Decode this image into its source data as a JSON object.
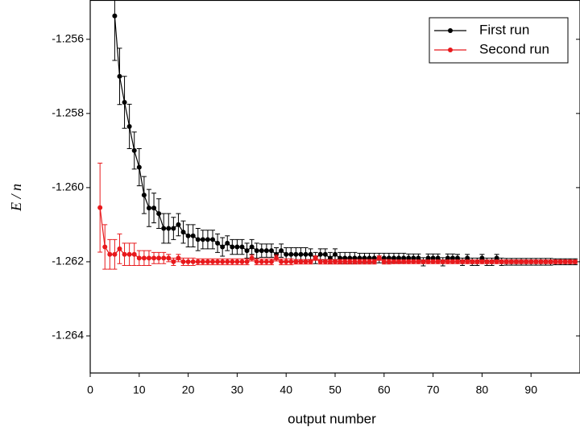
{
  "chart_data": {
    "type": "line",
    "y_label": "E / n",
    "x_label": "output number",
    "xlim": [
      0,
      100
    ],
    "ylim": [
      -1.265,
      -1.25494
    ],
    "xticks": [
      0,
      10,
      20,
      30,
      40,
      50,
      60,
      70,
      80,
      90
    ],
    "yticks": [
      -1.256,
      -1.258,
      {
        "value": -1.26,
        "label": "-1.260"
      },
      -1.262,
      -1.264
    ],
    "legend": "top-right",
    "series": [
      {
        "name": "First run",
        "color": "#000000",
        "x": [
          5,
          6,
          7,
          8,
          9,
          10,
          11,
          12,
          13,
          14,
          15,
          16,
          17,
          18,
          19,
          20,
          21,
          22,
          23,
          24,
          25,
          26,
          27,
          28,
          29,
          30,
          31,
          32,
          33,
          34,
          35,
          36,
          37,
          38,
          39,
          40,
          41,
          42,
          43,
          44,
          45,
          46,
          47,
          48,
          49,
          50,
          51,
          52,
          53,
          54,
          55,
          56,
          57,
          58,
          59,
          60,
          61,
          62,
          63,
          64,
          65,
          66,
          67,
          68,
          69,
          70,
          71,
          72,
          73,
          74,
          75,
          76,
          77,
          78,
          79,
          80,
          81,
          82,
          83,
          84,
          85,
          86,
          87,
          88,
          89,
          90,
          91,
          92,
          93,
          94,
          95,
          96,
          97,
          98,
          99
        ],
        "values": [
          -1.25537,
          -1.257,
          -1.2577,
          -1.25835,
          -1.259,
          -1.25945,
          -1.2602,
          -1.26055,
          -1.26055,
          -1.2607,
          -1.2611,
          -1.2611,
          -1.2611,
          -1.261,
          -1.2612,
          -1.2613,
          -1.2613,
          -1.2614,
          -1.2614,
          -1.2614,
          -1.2614,
          -1.2615,
          -1.2616,
          -1.2615,
          -1.2616,
          -1.2616,
          -1.2616,
          -1.2617,
          -1.2616,
          -1.2617,
          -1.2617,
          -1.2617,
          -1.2617,
          -1.2618,
          -1.2617,
          -1.2618,
          -1.2618,
          -1.2618,
          -1.2618,
          -1.2618,
          -1.2618,
          -1.2619,
          -1.2618,
          -1.2618,
          -1.2619,
          -1.2618,
          -1.2619,
          -1.2619,
          -1.2619,
          -1.2619,
          -1.2619,
          -1.2619,
          -1.2619,
          -1.2619,
          -1.2619,
          -1.2619,
          -1.2619,
          -1.2619,
          -1.2619,
          -1.2619,
          -1.2619,
          -1.2619,
          -1.2619,
          -1.262,
          -1.2619,
          -1.2619,
          -1.2619,
          -1.262,
          -1.2619,
          -1.2619,
          -1.2619,
          -1.262,
          -1.2619,
          -1.262,
          -1.262,
          -1.2619,
          -1.262,
          -1.262,
          -1.2619,
          -1.262,
          -1.262,
          -1.262,
          -1.262,
          -1.262,
          -1.262,
          -1.262,
          -1.262,
          -1.262,
          -1.262,
          -1.262,
          -1.262,
          -1.262,
          -1.262,
          -1.262,
          -1.262
        ],
        "errors": [
          0.0012,
          0.00076,
          0.0007,
          0.0006,
          0.0005,
          0.0005,
          0.0005,
          0.0005,
          0.0004,
          0.0004,
          0.0004,
          0.0004,
          0.0003,
          0.0003,
          0.0003,
          0.0003,
          0.0003,
          0.0003,
          0.00025,
          0.00025,
          0.00025,
          0.00025,
          0.00025,
          0.0002,
          0.0002,
          0.0002,
          0.0002,
          0.0002,
          0.0002,
          0.0002,
          0.00018,
          0.00018,
          0.00018,
          0.00018,
          0.00018,
          0.00018,
          0.00018,
          0.00018,
          0.00018,
          0.00018,
          0.00015,
          0.00015,
          0.00015,
          0.00015,
          0.00015,
          0.00015,
          0.00015,
          0.00015,
          0.00015,
          0.00015,
          0.00013,
          0.00013,
          0.00013,
          0.00013,
          0.00013,
          0.00013,
          0.00013,
          0.00013,
          0.00013,
          0.00013,
          0.00011,
          0.00011,
          0.00011,
          0.00011,
          0.00011,
          0.00011,
          0.00011,
          0.00011,
          0.00011,
          0.00011,
          0.0001,
          0.0001,
          0.0001,
          0.0001,
          0.0001,
          0.0001,
          0.0001,
          0.0001,
          0.0001,
          0.0001,
          9e-05,
          9e-05,
          9e-05,
          9e-05,
          9e-05,
          9e-05,
          9e-05,
          9e-05,
          9e-05,
          9e-05,
          8e-05,
          8e-05,
          8e-05,
          8e-05,
          8e-05
        ]
      },
      {
        "name": "Second run",
        "color": "#e8191c",
        "x": [
          2,
          3,
          4,
          5,
          6,
          7,
          8,
          9,
          10,
          11,
          12,
          13,
          14,
          15,
          16,
          17,
          18,
          19,
          20,
          21,
          22,
          23,
          24,
          25,
          26,
          27,
          28,
          29,
          30,
          31,
          32,
          33,
          34,
          35,
          36,
          37,
          38,
          39,
          40,
          41,
          42,
          43,
          44,
          45,
          46,
          47,
          48,
          49,
          50,
          51,
          52,
          53,
          54,
          55,
          56,
          57,
          58,
          59,
          60,
          61,
          62,
          63,
          64,
          65,
          66,
          67,
          68,
          69,
          70,
          71,
          72,
          73,
          74,
          75,
          76,
          77,
          78,
          79,
          80,
          81,
          82,
          83,
          84,
          85,
          86,
          87,
          88,
          89,
          90,
          91,
          92,
          93,
          94,
          95,
          96,
          97,
          98,
          99
        ],
        "values": [
          -1.26054,
          -1.2616,
          -1.2618,
          -1.2618,
          -1.26165,
          -1.2618,
          -1.2618,
          -1.2618,
          -1.2619,
          -1.2619,
          -1.2619,
          -1.2619,
          -1.2619,
          -1.2619,
          -1.2619,
          -1.262,
          -1.2619,
          -1.262,
          -1.262,
          -1.262,
          -1.262,
          -1.262,
          -1.262,
          -1.262,
          -1.262,
          -1.262,
          -1.262,
          -1.262,
          -1.262,
          -1.262,
          -1.262,
          -1.2619,
          -1.262,
          -1.262,
          -1.262,
          -1.262,
          -1.2619,
          -1.262,
          -1.262,
          -1.262,
          -1.262,
          -1.262,
          -1.262,
          -1.262,
          -1.2619,
          -1.262,
          -1.262,
          -1.262,
          -1.262,
          -1.262,
          -1.262,
          -1.262,
          -1.262,
          -1.262,
          -1.262,
          -1.262,
          -1.262,
          -1.2619,
          -1.262,
          -1.262,
          -1.262,
          -1.262,
          -1.262,
          -1.262,
          -1.262,
          -1.262,
          -1.262,
          -1.262,
          -1.262,
          -1.262,
          -1.262,
          -1.262,
          -1.262,
          -1.262,
          -1.262,
          -1.262,
          -1.262,
          -1.262,
          -1.262,
          -1.262,
          -1.262,
          -1.262,
          -1.262,
          -1.262,
          -1.262,
          -1.262,
          -1.262,
          -1.262,
          -1.262,
          -1.262,
          -1.262,
          -1.262,
          -1.262,
          -1.262,
          -1.262,
          -1.262,
          -1.262,
          -1.262
        ],
        "errors": [
          0.0012,
          0.0006,
          0.0004,
          0.0004,
          0.0004,
          0.0003,
          0.0003,
          0.0003,
          0.0002,
          0.0002,
          0.0002,
          0.00015,
          0.00015,
          0.00015,
          0.0001,
          0.0001,
          0.0001,
          0.0001,
          0.0001,
          0.0001,
          8e-05,
          8e-05,
          8e-05,
          8e-05,
          8e-05,
          8e-05,
          8e-05,
          8e-05,
          8e-05,
          8e-05,
          8e-05,
          8e-05,
          8e-05,
          8e-05,
          8e-05,
          8e-05,
          8e-05,
          8e-05,
          8e-05,
          8e-05,
          6e-05,
          6e-05,
          6e-05,
          6e-05,
          6e-05,
          6e-05,
          6e-05,
          6e-05,
          6e-05,
          6e-05,
          6e-05,
          6e-05,
          6e-05,
          6e-05,
          6e-05,
          6e-05,
          6e-05,
          6e-05,
          6e-05,
          6e-05,
          5e-05,
          5e-05,
          5e-05,
          5e-05,
          5e-05,
          5e-05,
          5e-05,
          5e-05,
          5e-05,
          5e-05,
          5e-05,
          5e-05,
          5e-05,
          5e-05,
          5e-05,
          5e-05,
          5e-05,
          5e-05,
          5e-05,
          5e-05,
          5e-05,
          5e-05,
          5e-05,
          5e-05,
          5e-05,
          5e-05,
          5e-05,
          5e-05,
          5e-05,
          5e-05,
          5e-05,
          5e-05,
          5e-05,
          5e-05,
          5e-05,
          5e-05,
          5e-05,
          5e-05
        ]
      }
    ]
  }
}
